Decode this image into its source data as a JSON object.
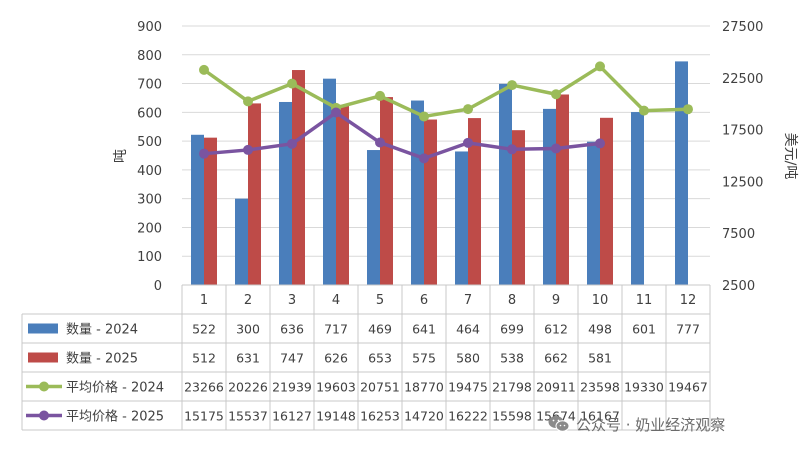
{
  "chart_data": {
    "type": "bar",
    "categories": [
      "1",
      "2",
      "3",
      "4",
      "5",
      "6",
      "7",
      "8",
      "9",
      "10",
      "11",
      "12"
    ],
    "series": [
      {
        "name": "数量 - 2024",
        "kind": "bar",
        "axis": "left",
        "color": "#4a7ebb",
        "values": [
          522,
          300,
          636,
          717,
          469,
          641,
          464,
          699,
          612,
          498,
          601,
          777
        ],
        "labels": [
          "522",
          "300",
          "636",
          "717",
          "469",
          "641",
          "464",
          "699",
          "612",
          "498",
          "601",
          "777"
        ]
      },
      {
        "name": "数量 - 2025",
        "kind": "bar",
        "axis": "left",
        "color": "#be4b48",
        "values": [
          512,
          631,
          747,
          626,
          653,
          575,
          580,
          538,
          662,
          581,
          null,
          null
        ],
        "labels": [
          "512",
          "631",
          "747",
          "626",
          "653",
          "575",
          "580",
          "538",
          "662",
          "581",
          "",
          ""
        ]
      },
      {
        "name": "平均价格 - 2024",
        "kind": "line",
        "axis": "right",
        "color": "#9bbb59",
        "values": [
          23266,
          20226,
          21939,
          19603,
          20751,
          18770,
          19475,
          21798,
          20911,
          23598,
          19330,
          19467
        ],
        "labels": [
          "23266",
          "20226",
          "21939",
          "19603",
          "20751",
          "18770",
          "19475",
          "21798",
          "20911",
          "23598",
          "19330",
          "19467"
        ]
      },
      {
        "name": "平均价格 - 2025",
        "kind": "line",
        "axis": "right",
        "color": "#7a54a0",
        "values": [
          15175,
          15537,
          16127,
          19148,
          16253,
          14720,
          16222,
          15598,
          15674,
          16167,
          null,
          null
        ],
        "labels": [
          "15175",
          "15537",
          "16127",
          "19148",
          "16253",
          "14720",
          "16222",
          "15598",
          "15674",
          "16167",
          "",
          ""
        ]
      }
    ],
    "ylabel": "吨",
    "y2label": "美元/吨",
    "ylim": [
      0,
      900
    ],
    "yticks": [
      "0",
      "100",
      "200",
      "300",
      "400",
      "500",
      "600",
      "700",
      "800",
      "900"
    ],
    "y2lim": [
      2500,
      27500
    ],
    "y2ticks": [
      "2500",
      "7500",
      "12500",
      "17500",
      "22500",
      "27500"
    ],
    "grid": true,
    "legend": "data-table-left"
  },
  "watermark": {
    "text": "公众号 · 奶业经济观察",
    "icon": "wechat-icon"
  }
}
